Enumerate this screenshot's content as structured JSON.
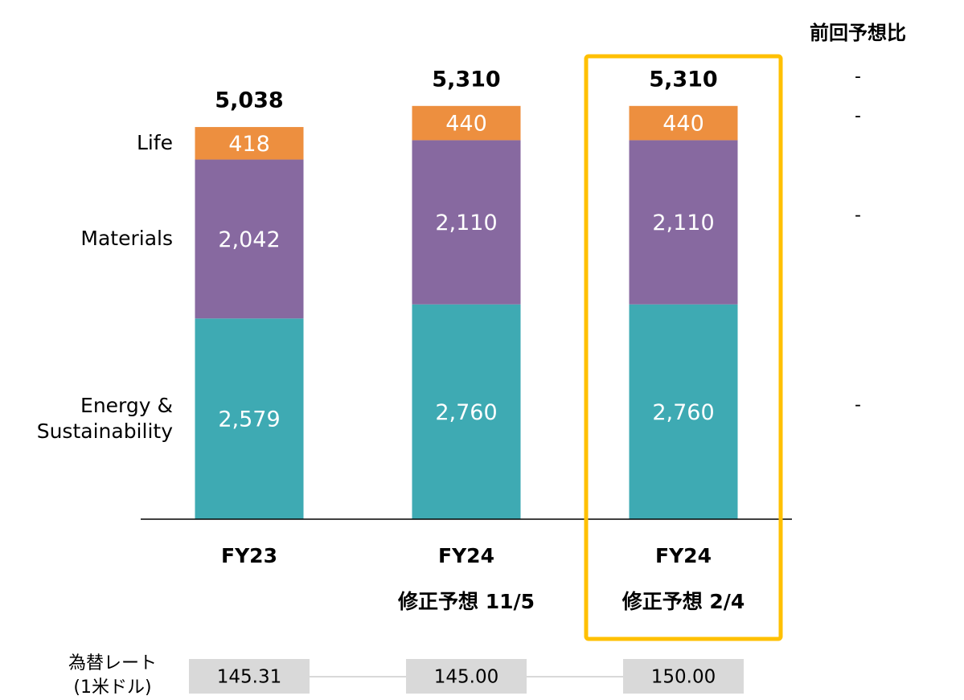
{
  "chart_data": {
    "type": "stacked_bar",
    "categories": [
      [
        "FY23"
      ],
      [
        "FY24",
        "修正予想 11/5"
      ],
      [
        "FY24",
        "修正予想 2/4"
      ]
    ],
    "series": [
      {
        "name": "Energy & Sustainability",
        "color": "#3eaab3",
        "values": [
          2579,
          2760,
          2760
        ],
        "value_labels": [
          "2,579",
          "2,760",
          "2,760"
        ]
      },
      {
        "name": "Materials",
        "color": "#8769a0",
        "values": [
          2042,
          2110,
          2110
        ],
        "value_labels": [
          "2,042",
          "2,110",
          "2,110"
        ]
      },
      {
        "name": "Life",
        "color": "#ed8f3f",
        "values": [
          418,
          440,
          440
        ],
        "value_labels": [
          "418",
          "440",
          "440"
        ]
      }
    ],
    "totals": [
      5038,
      5310,
      5310
    ],
    "total_labels": [
      "5,038",
      "5,310",
      "5,310"
    ],
    "ylim": [
      0,
      6000
    ],
    "highlight": 2,
    "highlight_color": "#ffc000",
    "comparison": {
      "title": "前回予想比",
      "total": "-",
      "series": [
        "-",
        "-",
        "-"
      ]
    },
    "fx": {
      "label": [
        "為替レート",
        "(1米ドル)"
      ],
      "values": [
        145.31,
        145,
        150
      ],
      "value_labels": [
        "145.31",
        "145.00",
        "150.00"
      ]
    }
  }
}
